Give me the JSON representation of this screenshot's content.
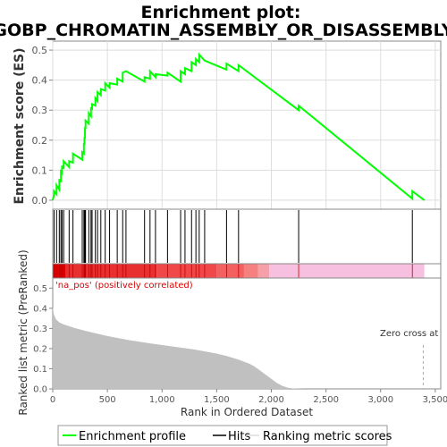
{
  "title_line1": "Enrichment plot:",
  "title_line2": "GOBP_CHROMATIN_ASSEMBLY_OR_DISASSEMBLY",
  "colors": {
    "es_line": "#00ff00",
    "hits": "#000000",
    "metric_fill": "#c0c0c0",
    "pos_label": "#dd0000",
    "zero_line": "#aaaaaa"
  },
  "chart_data": [
    {
      "type": "line",
      "name": "enrichment-profile",
      "ylabel": "Enrichment score (ES)",
      "xlim": [
        0,
        3550
      ],
      "ylim": [
        -0.03,
        0.53
      ],
      "yticks": [
        0.0,
        0.1,
        0.2,
        0.3,
        0.4,
        0.5
      ],
      "ytick_labels": [
        "0.0",
        "0.1",
        "0.2",
        "0.3",
        "0.4",
        "0.5"
      ],
      "grid": true,
      "x": [
        0,
        12,
        12,
        35,
        35,
        60,
        60,
        75,
        75,
        85,
        85,
        100,
        100,
        150,
        150,
        185,
        185,
        270,
        270,
        285,
        285,
        290,
        290,
        295,
        295,
        300,
        300,
        330,
        330,
        350,
        350,
        360,
        360,
        390,
        390,
        410,
        410,
        440,
        440,
        480,
        480,
        520,
        520,
        590,
        590,
        640,
        640,
        670,
        670,
        840,
        840,
        890,
        890,
        940,
        940,
        1050,
        1050,
        1170,
        1170,
        1210,
        1210,
        1270,
        1270,
        1310,
        1310,
        1340,
        1340,
        1390,
        1390,
        1590,
        1590,
        1700,
        1700,
        2250,
        2250,
        3290,
        3290,
        3400
      ],
      "y": [
        0.0,
        0.02,
        0.03,
        0.02,
        0.05,
        0.035,
        0.07,
        0.06,
        0.095,
        0.09,
        0.115,
        0.105,
        0.13,
        0.11,
        0.13,
        0.125,
        0.155,
        0.135,
        0.16,
        0.155,
        0.19,
        0.185,
        0.21,
        0.205,
        0.24,
        0.24,
        0.265,
        0.255,
        0.29,
        0.28,
        0.31,
        0.3,
        0.32,
        0.315,
        0.34,
        0.33,
        0.36,
        0.35,
        0.37,
        0.365,
        0.39,
        0.375,
        0.39,
        0.385,
        0.405,
        0.395,
        0.425,
        0.43,
        0.43,
        0.395,
        0.41,
        0.405,
        0.43,
        0.41,
        0.42,
        0.415,
        0.425,
        0.395,
        0.43,
        0.42,
        0.44,
        0.43,
        0.46,
        0.45,
        0.47,
        0.46,
        0.485,
        0.465,
        0.465,
        0.435,
        0.455,
        0.43,
        0.45,
        0.3,
        0.315,
        0.005,
        0.03,
        0.0
      ]
    },
    {
      "type": "scatter",
      "name": "hits",
      "x": [
        12,
        35,
        60,
        75,
        85,
        100,
        150,
        185,
        270,
        285,
        290,
        295,
        300,
        330,
        350,
        360,
        390,
        410,
        440,
        480,
        520,
        590,
        640,
        670,
        840,
        890,
        940,
        1050,
        1170,
        1210,
        1270,
        1310,
        1340,
        1390,
        1590,
        1700,
        2250,
        3290
      ]
    },
    {
      "type": "area",
      "name": "ranking-metric-scores",
      "xlabel": "Rank in Ordered Dataset",
      "ylabel": "Ranked list metric (PreRanked)",
      "xlim": [
        0,
        3550
      ],
      "ylim": [
        0,
        0.55
      ],
      "xticks": [
        0,
        500,
        1000,
        1500,
        2000,
        2500,
        3000,
        3500
      ],
      "xtick_labels": [
        "0",
        "500",
        "1,000",
        "1,500",
        "2,000",
        "2,500",
        "3,000",
        "3,500"
      ],
      "yticks": [
        0.0,
        0.1,
        0.2,
        0.3,
        0.4,
        0.5
      ],
      "ytick_labels": [
        "0.0",
        "0.1",
        "0.2",
        "0.3",
        "0.4",
        "0.5"
      ],
      "x": [
        0,
        10,
        30,
        60,
        100,
        200,
        300,
        500,
        700,
        900,
        1100,
        1300,
        1500,
        1600,
        1700,
        1800,
        1850,
        1900,
        1950,
        2000,
        2050,
        2100,
        2150,
        2200,
        2300,
        2500,
        3000,
        3400
      ],
      "y": [
        0.41,
        0.37,
        0.345,
        0.33,
        0.32,
        0.302,
        0.288,
        0.262,
        0.242,
        0.225,
        0.21,
        0.195,
        0.175,
        0.162,
        0.145,
        0.125,
        0.11,
        0.09,
        0.07,
        0.05,
        0.03,
        0.015,
        0.006,
        0.002,
        0.0,
        0.0,
        0.0,
        0.0
      ],
      "zero_cross": 3390
    }
  ],
  "heatmap_segments": [
    {
      "x0": 0,
      "x1": 120,
      "color": "#dd0000"
    },
    {
      "x0": 120,
      "x1": 950,
      "color": "#e83030"
    },
    {
      "x0": 950,
      "x1": 1500,
      "color": "#f04848"
    },
    {
      "x0": 1500,
      "x1": 1750,
      "color": "#f46060"
    },
    {
      "x0": 1750,
      "x1": 1880,
      "color": "#f58080"
    },
    {
      "x0": 1880,
      "x1": 1980,
      "color": "#f5a0a8"
    },
    {
      "x0": 1980,
      "x1": 3400,
      "color": "#f8c0e0"
    }
  ],
  "annotations": {
    "pos_label": "'na_pos' (positively correlated)",
    "zero_cross_label": "Zero cross at"
  },
  "legend": {
    "profile": "Enrichment profile",
    "hits": "Hits",
    "metric": "Ranking metric scores"
  }
}
